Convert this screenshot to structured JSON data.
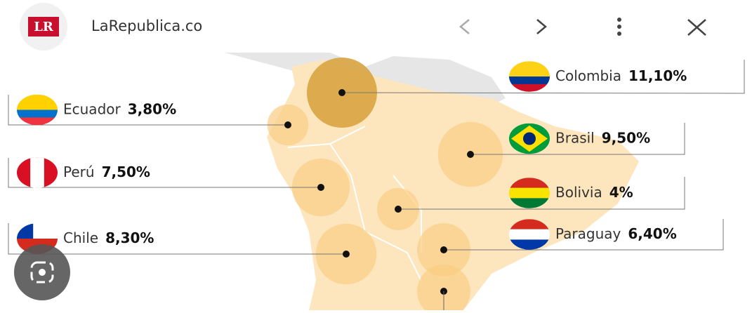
{
  "header": {
    "logo": "LR",
    "site": "LaRepublica.co"
  },
  "map": {
    "countries": [
      {
        "name": "Colombia",
        "value": 11.1,
        "value_label": "11,10%"
      },
      {
        "name": "Ecuador",
        "value": 3.8,
        "value_label": "3,80%"
      },
      {
        "name": "Brasil",
        "value": 9.5,
        "value_label": "9,50%"
      },
      {
        "name": "Perú",
        "value": 7.5,
        "value_label": "7,50%"
      },
      {
        "name": "Bolivia",
        "value": 4,
        "value_label": "4%"
      },
      {
        "name": "Chile",
        "value": 8.3,
        "value_label": "8,30%"
      },
      {
        "name": "Paraguay",
        "value": 6.4,
        "value_label": "6,40%"
      }
    ]
  }
}
